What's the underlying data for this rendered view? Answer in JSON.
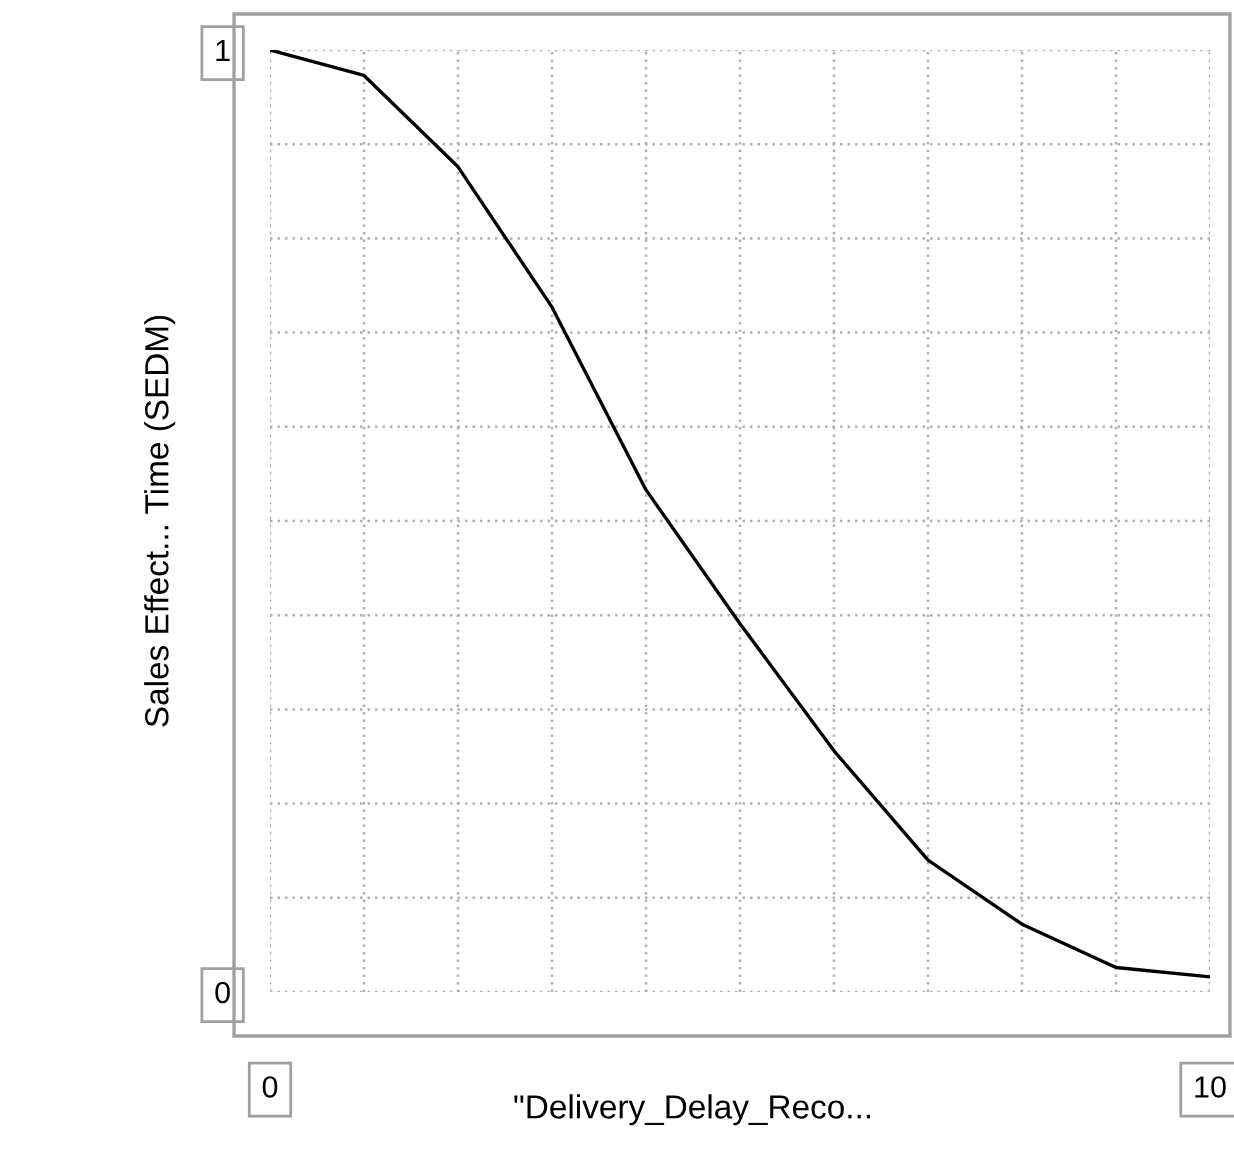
{
  "chart_data": {
    "type": "line",
    "xlabel": "\"Delivery_Delay_Reco...",
    "ylabel": "Sales Effect... Time (SEDM)",
    "x": [
      0,
      1,
      2,
      3,
      4,
      5,
      6,
      7,
      8,
      9,
      10
    ],
    "series": [
      {
        "color": "#000000",
        "values": [
          1.0,
          0.973,
          0.876,
          0.727,
          0.533,
          0.391,
          0.256,
          0.14,
          0.072,
          0.026,
          0.016
        ]
      }
    ],
    "xlim": [
      0,
      10
    ],
    "ylim": [
      0,
      1
    ],
    "xticks": [
      0,
      {
        "value": 1,
        "label": null
      },
      {
        "value": 2,
        "label": null
      },
      {
        "value": 3,
        "label": null
      },
      {
        "value": 4,
        "label": null
      },
      {
        "value": 5,
        "label": null
      },
      {
        "value": 6,
        "label": null
      },
      {
        "value": 7,
        "label": null
      },
      {
        "value": 8,
        "label": null
      },
      {
        "value": 9,
        "label": null
      },
      10
    ],
    "yticks": [
      0,
      {
        "value": 0.1,
        "label": null
      },
      {
        "value": 0.2,
        "label": null
      },
      {
        "value": 0.3,
        "label": null
      },
      {
        "value": 0.4,
        "label": null
      },
      {
        "value": 0.5,
        "label": null
      },
      {
        "value": 0.6,
        "label": null
      },
      {
        "value": 0.7,
        "label": null
      },
      {
        "value": 0.8,
        "label": null
      },
      {
        "value": 0.9,
        "label": null
      },
      1
    ],
    "grid": true,
    "line_style": "solid",
    "marker": "none"
  }
}
